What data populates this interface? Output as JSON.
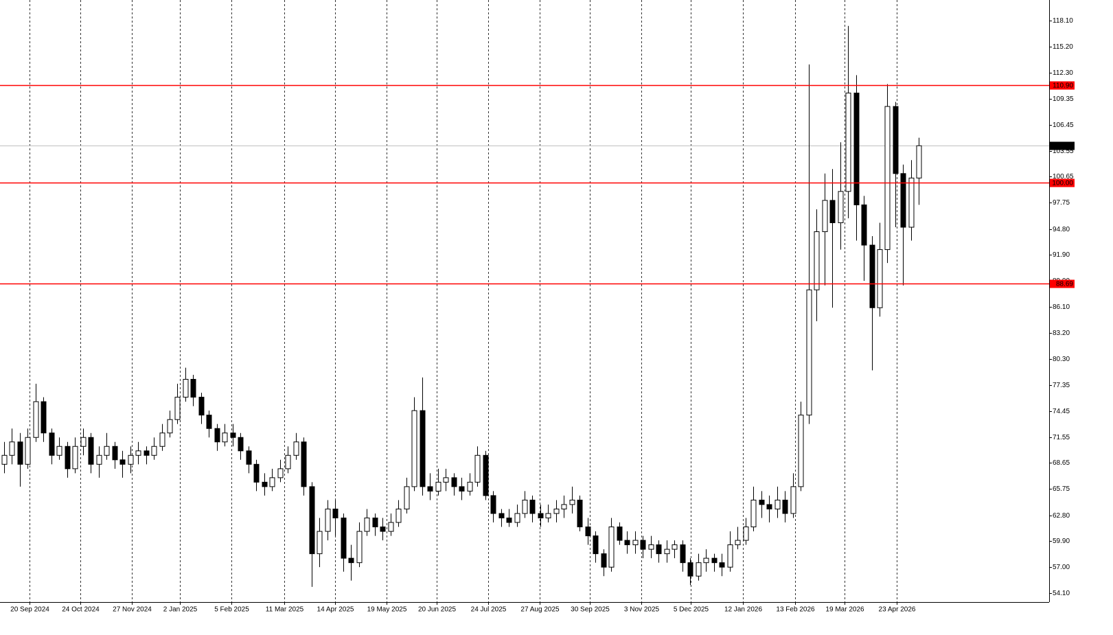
{
  "chart_data": {
    "type": "candlestick",
    "xlim": [
      0,
      133
    ],
    "xticks": [
      {
        "value": 3.7,
        "label": "20 Sep 2024"
      },
      {
        "value": 10.2,
        "label": "24 Oct 2024"
      },
      {
        "value": 16.7,
        "label": "27 Nov 2024"
      },
      {
        "value": 22.8,
        "label": "2 Jan 2025"
      },
      {
        "value": 29.3,
        "label": "5 Feb 2025"
      },
      {
        "value": 36.0,
        "label": "11 Mar 2025"
      },
      {
        "value": 42.5,
        "label": "14 Apr 2025"
      },
      {
        "value": 49.0,
        "label": "19 May 2025"
      },
      {
        "value": 55.4,
        "label": "20 Jun 2025"
      },
      {
        "value": 61.9,
        "label": "24 Jul 2025"
      },
      {
        "value": 68.4,
        "label": "27 Aug 2025"
      },
      {
        "value": 74.8,
        "label": "30 Sep 2025"
      },
      {
        "value": 81.3,
        "label": "3 Nov 2025"
      },
      {
        "value": 87.6,
        "label": "5 Dec 2025"
      },
      {
        "value": 94.2,
        "label": "12 Jan 2026"
      },
      {
        "value": 100.8,
        "label": "13 Feb 2026"
      },
      {
        "value": 107.1,
        "label": "19 Mar 2026"
      },
      {
        "value": 113.7,
        "label": "23 Apr 2026"
      }
    ],
    "ylim": [
      53.1,
      120.4
    ],
    "yticks": [
      {
        "value": 118.1,
        "label": "118.10"
      },
      {
        "value": 115.2,
        "label": "115.20"
      },
      {
        "value": 112.3,
        "label": "112.30"
      },
      {
        "value": 109.35,
        "label": "109.35"
      },
      {
        "value": 106.45,
        "label": "106.45"
      },
      {
        "value": 103.55,
        "label": "103.55"
      },
      {
        "value": 100.65,
        "label": "100.65"
      },
      {
        "value": 97.75,
        "label": "97.75"
      },
      {
        "value": 94.8,
        "label": "94.80"
      },
      {
        "value": 91.9,
        "label": "91.90"
      },
      {
        "value": 89,
        "label": "89.00"
      },
      {
        "value": 86.1,
        "label": "86.10"
      },
      {
        "value": 83.2,
        "label": "83.20"
      },
      {
        "value": 80.3,
        "label": "80.30"
      },
      {
        "value": 77.35,
        "label": "77.35"
      },
      {
        "value": 74.45,
        "label": "74.45"
      },
      {
        "value": 71.55,
        "label": "71.55"
      },
      {
        "value": 68.65,
        "label": "68.65"
      },
      {
        "value": 65.75,
        "label": "65.75"
      },
      {
        "value": 62.8,
        "label": "62.80"
      },
      {
        "value": 59.9,
        "label": "59.90"
      },
      {
        "value": 57,
        "label": "57.00"
      },
      {
        "value": 54.1,
        "label": "54.10"
      }
    ],
    "up_color": "#ffffff",
    "down_color": "#000000",
    "outline_color": "#000000",
    "open": [
      68.5,
      69.5,
      71.0,
      68.5,
      71.5,
      75.5,
      72.0,
      69.5,
      70.5,
      68.0,
      70.5,
      71.5,
      68.5,
      69.5,
      70.5,
      69.0,
      68.5,
      69.5,
      70.0,
      69.5,
      70.5,
      72.0,
      73.5,
      76.0,
      78.0,
      76.0,
      74.0,
      72.5,
      71.0,
      72.0,
      71.5,
      70.0,
      68.5,
      66.5,
      66.0,
      67.0,
      68.0,
      69.5,
      71.0,
      66.0,
      58.5,
      61.0,
      63.5,
      62.5,
      58.0,
      57.5,
      61.0,
      62.5,
      61.5,
      61.0,
      62.0,
      63.5,
      66.0,
      74.5,
      66.0,
      65.5,
      66.5,
      67.0,
      66.0,
      65.5,
      66.5,
      69.5,
      65.0,
      63.0,
      62.5,
      62.0,
      63.0,
      64.5,
      63.0,
      62.5,
      63.0,
      63.5,
      64.0,
      64.5,
      61.5,
      60.5,
      58.5,
      57.0,
      61.5,
      60.0,
      59.5,
      60.0,
      59.0,
      59.5,
      58.5,
      59.0,
      59.5,
      57.5,
      56.0,
      57.5,
      58.0,
      57.5,
      57.0,
      59.5,
      60.0,
      61.5,
      64.5,
      64.0,
      63.5,
      64.5,
      63.0,
      66.0,
      74.0,
      88.0,
      94.5,
      98.0,
      95.5,
      99.0,
      110.0,
      97.5,
      93.0,
      86.0,
      92.5,
      108.5,
      101.0,
      95.0,
      100.5
    ],
    "high": [
      71.0,
      72.5,
      72.0,
      72.5,
      77.5,
      76.0,
      72.5,
      71.5,
      71.0,
      71.5,
      72.5,
      72.0,
      70.5,
      72.0,
      71.0,
      70.0,
      70.5,
      71.0,
      70.5,
      71.5,
      73.0,
      74.5,
      77.5,
      79.3,
      78.5,
      76.5,
      74.5,
      73.0,
      73.0,
      73.0,
      72.0,
      70.5,
      69.0,
      67.5,
      68.0,
      69.0,
      70.5,
      72.0,
      71.5,
      66.5,
      62.5,
      64.5,
      64.5,
      63.0,
      59.5,
      62.0,
      63.5,
      63.0,
      62.5,
      63.0,
      64.5,
      67.0,
      76.0,
      78.2,
      67.5,
      68.0,
      68.0,
      67.5,
      67.0,
      67.5,
      70.5,
      70.0,
      65.5,
      63.5,
      63.5,
      64.0,
      65.5,
      65.0,
      64.0,
      64.0,
      64.5,
      65.0,
      66.0,
      65.0,
      62.5,
      61.0,
      59.0,
      62.5,
      62.0,
      61.0,
      61.0,
      60.5,
      60.5,
      60.0,
      60.0,
      60.0,
      60.0,
      58.0,
      58.5,
      59.0,
      58.5,
      58.5,
      61.0,
      61.5,
      62.5,
      66.0,
      65.5,
      65.0,
      66.0,
      65.5,
      67.5,
      75.5,
      113.2,
      97.0,
      101.0,
      101.5,
      104.5,
      117.5,
      112.0,
      98.5,
      94.0,
      95.5,
      111.0,
      109.0,
      102.0,
      102.5,
      105.0
    ],
    "low": [
      67.5,
      68.5,
      66.0,
      68.0,
      71.0,
      71.0,
      68.5,
      69.0,
      67.0,
      67.5,
      69.5,
      67.5,
      67.0,
      69.0,
      68.0,
      67.0,
      67.5,
      68.5,
      68.5,
      69.0,
      70.0,
      71.5,
      73.0,
      75.5,
      75.0,
      73.0,
      71.5,
      70.0,
      70.5,
      70.5,
      69.0,
      67.5,
      65.5,
      65.0,
      65.5,
      66.5,
      67.5,
      69.0,
      65.0,
      54.8,
      57.0,
      60.0,
      60.5,
      56.5,
      55.5,
      57.0,
      60.5,
      60.5,
      60.0,
      60.5,
      61.5,
      63.0,
      65.5,
      65.0,
      64.5,
      65.0,
      65.5,
      65.0,
      64.5,
      65.0,
      66.0,
      64.5,
      62.0,
      61.5,
      61.5,
      61.5,
      62.5,
      62.0,
      61.5,
      62.0,
      62.0,
      62.5,
      63.0,
      61.0,
      59.5,
      57.5,
      56.0,
      56.5,
      59.5,
      58.5,
      58.5,
      58.0,
      58.0,
      57.5,
      57.5,
      58.0,
      56.5,
      55.0,
      55.5,
      56.5,
      56.5,
      56.0,
      56.5,
      59.0,
      59.5,
      61.0,
      62.5,
      62.0,
      62.5,
      62.0,
      62.5,
      65.5,
      73.0,
      84.5,
      88.5,
      86.0,
      92.5,
      96.0,
      93.5,
      89.0,
      79.0,
      85.0,
      91.0,
      95.0,
      88.5,
      93.5,
      97.5
    ],
    "close": [
      69.5,
      71.0,
      68.5,
      71.5,
      75.5,
      72.0,
      69.5,
      70.5,
      68.0,
      70.5,
      71.5,
      68.5,
      69.5,
      70.5,
      69.0,
      68.5,
      69.5,
      70.0,
      69.5,
      70.5,
      72.0,
      73.5,
      76.0,
      78.0,
      76.0,
      74.0,
      72.5,
      71.0,
      72.0,
      71.5,
      70.0,
      68.5,
      66.5,
      66.0,
      67.0,
      68.0,
      69.5,
      71.0,
      66.0,
      58.5,
      61.0,
      63.5,
      62.5,
      58.0,
      57.5,
      61.0,
      62.5,
      61.5,
      61.0,
      62.0,
      63.5,
      66.0,
      74.5,
      66.0,
      65.5,
      66.5,
      67.0,
      66.0,
      65.5,
      66.5,
      69.5,
      65.0,
      63.0,
      62.5,
      62.0,
      63.0,
      64.5,
      63.0,
      62.5,
      63.0,
      63.5,
      64.0,
      64.5,
      61.5,
      60.5,
      58.5,
      57.0,
      61.5,
      60.0,
      59.5,
      60.0,
      59.0,
      59.5,
      58.5,
      59.0,
      59.5,
      57.5,
      56.0,
      57.5,
      58.0,
      57.5,
      57.0,
      59.5,
      60.0,
      61.5,
      64.5,
      64.0,
      63.5,
      64.5,
      63.0,
      66.0,
      74.0,
      88.0,
      94.5,
      98.0,
      95.5,
      99.0,
      110.0,
      97.5,
      93.0,
      86.0,
      92.5,
      108.5,
      101.0,
      95.0,
      100.5,
      104.11
    ],
    "levels": [
      {
        "value": 110.9,
        "label": "110.90",
        "color": "#ff0000"
      },
      {
        "value": 100,
        "label": "100.00",
        "color": "#ff0000"
      },
      {
        "value": 88.69,
        "label": "88.69",
        "color": "#ff0000"
      }
    ],
    "last_price": {
      "value": 104.11,
      "label": "104.11",
      "color": "#c0c0c0"
    },
    "grid": true
  }
}
